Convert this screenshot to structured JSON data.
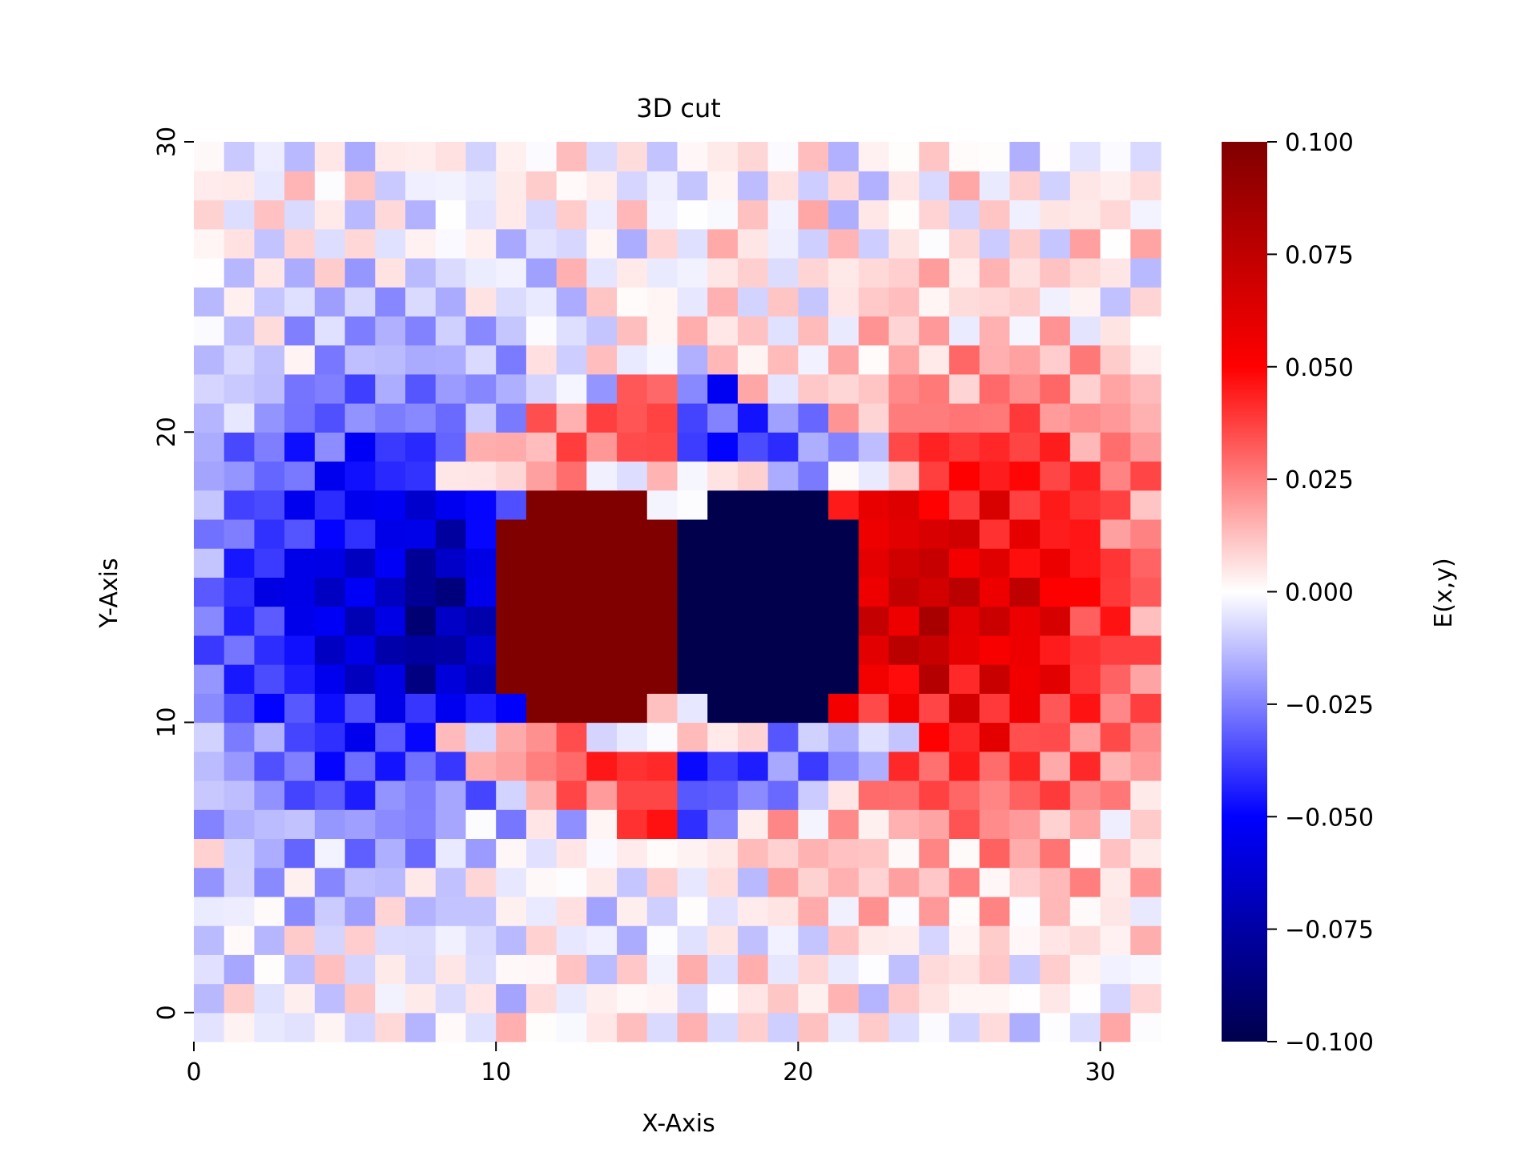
{
  "chart_data": {
    "type": "heatmap",
    "title": "3D cut",
    "xlabel": "X-Axis",
    "ylabel": "Y-Axis",
    "colorbar_label": "E(x,y)",
    "colormap": "seismic",
    "grid": false,
    "xlim": [
      0,
      32
    ],
    "ylim": [
      -1,
      30
    ],
    "x_ticks": [
      0,
      10,
      20,
      30
    ],
    "y_ticks": [
      0,
      10,
      20,
      30
    ],
    "vmin": -0.1,
    "vmax": 0.1,
    "colorbar_ticks": [
      "0.100",
      "0.075",
      "0.050",
      "0.025",
      "0.000",
      "−0.025",
      "−0.050",
      "−0.075",
      "−0.100"
    ],
    "grid_size": {
      "nx": 32,
      "ny": 31
    },
    "description_of_field": {
      "positive_core": {
        "x_range": [
          10,
          16
        ],
        "y_range": [
          11,
          19
        ],
        "value": 0.1
      },
      "negative_core": {
        "x_range": [
          16,
          22
        ],
        "y_range": [
          11,
          19
        ],
        "value": -0.1
      },
      "left_negative_halo_center": [
        6,
        15
      ],
      "right_positive_halo_center": [
        26,
        15
      ]
    }
  }
}
